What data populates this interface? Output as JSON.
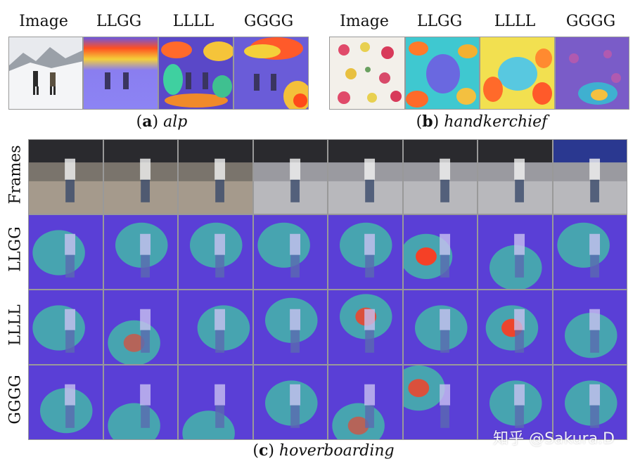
{
  "panel_a": {
    "headers": [
      "Image",
      "LLGG",
      "LLLL",
      "GGGG"
    ],
    "caption_letter": "a",
    "caption_name": "alp"
  },
  "panel_b": {
    "headers": [
      "Image",
      "LLGG",
      "LLLL",
      "GGGG"
    ],
    "caption_letter": "b",
    "caption_name": "handkerchief"
  },
  "panel_c": {
    "row_labels": [
      "Frames",
      "LLGG",
      "LLLL",
      "GGGG"
    ],
    "caption_letter": "c",
    "caption_name": "hoverboarding",
    "frame_count": 8
  },
  "watermark": "知乎 @Sakura.D",
  "colors": {
    "heat_low": "#5a3fd6",
    "heat_mid": "#3fd0a0",
    "heat_high": "#ff3b1f"
  }
}
